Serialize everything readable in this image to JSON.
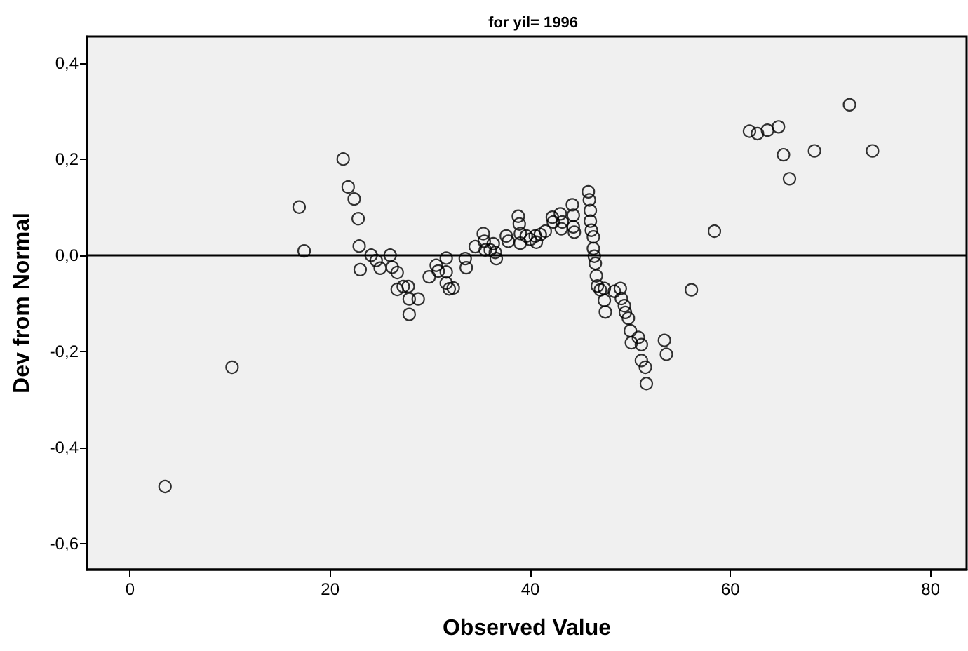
{
  "chart_data": {
    "type": "scatter",
    "title": "for yil= 1996",
    "xlabel": "Observed Value",
    "ylabel": "Dev from Normal",
    "xlim": [
      -4.3,
      83.6
    ],
    "xticks": [
      0,
      20,
      40,
      60,
      80
    ],
    "ylim": [
      -0.654,
      0.455
    ],
    "yticks": [
      {
        "value": -0.6,
        "label": "-0,6"
      },
      {
        "value": -0.4,
        "label": "-0,4"
      },
      {
        "value": -0.2,
        "label": "-0,2"
      },
      {
        "value": 0,
        "label": "0,0"
      },
      {
        "value": 0.2,
        "label": "0,2"
      },
      {
        "value": 0.4,
        "label": "0,4"
      }
    ],
    "grid": false,
    "marker": "circle",
    "ref_lines": [
      {
        "axis": "y",
        "value": 0,
        "label": null,
        "color": "#000000"
      }
    ],
    "series": [
      {
        "color": "#000000",
        "x": [
          3.5,
          10.2,
          16.9,
          17.4,
          21.3,
          21.8,
          22.4,
          22.8,
          22.9,
          23.0,
          24.1,
          24.6,
          25.0,
          26.0,
          26.2,
          26.7,
          26.7,
          27.3,
          27.8,
          27.9,
          27.9,
          28.8,
          29.9,
          30.6,
          30.8,
          31.6,
          31.6,
          31.6,
          31.9,
          32.3,
          33.5,
          33.6,
          34.5,
          35.3,
          35.4,
          35.5,
          36.0,
          36.3,
          36.5,
          36.6,
          37.6,
          37.8,
          38.8,
          38.9,
          39.0,
          39.0,
          39.6,
          40.0,
          40.5,
          40.6,
          41.0,
          41.5,
          42.2,
          42.3,
          43.0,
          43.1,
          43.2,
          44.2,
          44.3,
          44.3,
          44.4,
          45.8,
          45.9,
          46.0,
          46.0,
          46.1,
          46.3,
          46.3,
          46.4,
          46.5,
          46.6,
          46.7,
          47.0,
          47.4,
          47.4,
          47.5,
          48.4,
          49.0,
          49.1,
          49.4,
          49.5,
          49.8,
          50.0,
          50.1,
          50.8,
          51.1,
          51.1,
          51.5,
          51.6,
          53.4,
          53.6,
          56.1,
          58.4,
          61.9,
          62.7,
          63.7,
          64.8,
          65.3,
          65.9,
          68.4,
          71.9,
          74.2
        ],
        "values": [
          -0.481,
          -0.233,
          0.1,
          0.009,
          0.2,
          0.142,
          0.117,
          0.076,
          0.019,
          -0.03,
          0.0,
          -0.011,
          -0.027,
          0.0,
          -0.025,
          -0.036,
          -0.071,
          -0.065,
          -0.065,
          -0.091,
          -0.123,
          -0.091,
          -0.045,
          -0.021,
          -0.033,
          -0.006,
          -0.035,
          -0.058,
          -0.07,
          -0.068,
          -0.007,
          -0.026,
          0.018,
          0.045,
          0.029,
          0.011,
          0.011,
          0.024,
          0.006,
          -0.007,
          0.04,
          0.029,
          0.081,
          0.065,
          0.045,
          0.025,
          0.04,
          0.033,
          0.04,
          0.027,
          0.043,
          0.05,
          0.079,
          0.069,
          0.086,
          0.055,
          0.069,
          0.105,
          0.083,
          0.059,
          0.048,
          0.132,
          0.115,
          0.093,
          0.071,
          0.052,
          0.038,
          0.014,
          -0.002,
          -0.017,
          -0.043,
          -0.064,
          -0.072,
          -0.069,
          -0.094,
          -0.118,
          -0.075,
          -0.069,
          -0.09,
          -0.105,
          -0.119,
          -0.131,
          -0.157,
          -0.182,
          -0.171,
          -0.186,
          -0.219,
          -0.233,
          -0.267,
          -0.177,
          -0.206,
          -0.072,
          0.05,
          0.258,
          0.253,
          0.26,
          0.267,
          0.209,
          0.159,
          0.217,
          0.313,
          0.217
        ]
      }
    ]
  }
}
